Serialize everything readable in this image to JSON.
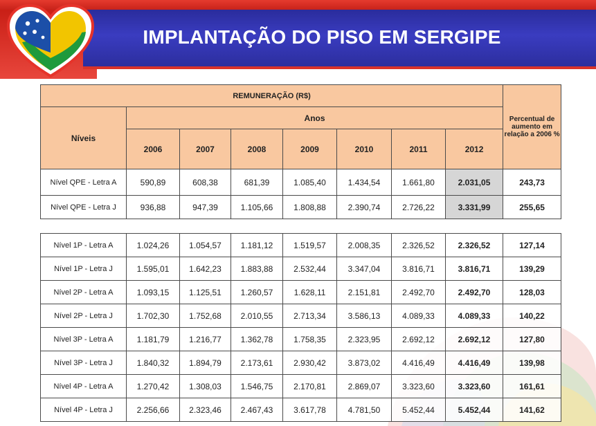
{
  "title": "IMPLANTAÇÃO DO PISO EM SERGIPE",
  "colors": {
    "header_blue": "#2a2c9c",
    "header_red": "#d9332a",
    "table_header": "#f9c8a0",
    "highlight_gray": "#d6d6d6"
  },
  "table": {
    "group_header": "REMUNERAÇÃO (R$)",
    "levels_header": "Níveis",
    "years_header": "Anos",
    "percent_header": "Percentual de aumento em relação a 2006 %",
    "years": [
      "2006",
      "2007",
      "2008",
      "2009",
      "2010",
      "2011",
      "2012"
    ],
    "rows_qpe": [
      {
        "label": "Nível QPE - Letra A",
        "values": [
          "590,89",
          "608,38",
          "681,39",
          "1.085,40",
          "1.434,54",
          "1.661,80",
          "2.031,05"
        ],
        "percent": "243,73"
      },
      {
        "label": "Nível QPE - Letra J",
        "values": [
          "936,88",
          "947,39",
          "1.105,66",
          "1.808,88",
          "2.390,74",
          "2.726,22",
          "3.331,99"
        ],
        "percent": "255,65"
      }
    ],
    "rows_p": [
      {
        "label": "Nível 1P - Letra A",
        "values": [
          "1.024,26",
          "1.054,57",
          "1.181,12",
          "1.519,57",
          "2.008,35",
          "2.326,52",
          "2.326,52"
        ],
        "percent": "127,14"
      },
      {
        "label": "Nível 1P - Letra J",
        "values": [
          "1.595,01",
          "1.642,23",
          "1.883,88",
          "2.532,44",
          "3.347,04",
          "3.816,71",
          "3.816,71"
        ],
        "percent": "139,29"
      },
      {
        "label": "Nível 2P - Letra A",
        "values": [
          "1.093,15",
          "1.125,51",
          "1.260,57",
          "1.628,11",
          "2.151,81",
          "2.492,70",
          "2.492,70"
        ],
        "percent": "128,03"
      },
      {
        "label": "Nível 2P - Letra J",
        "values": [
          "1.702,30",
          "1.752,68",
          "2.010,55",
          "2.713,34",
          "3.586,13",
          "4.089,33",
          "4.089,33"
        ],
        "percent": "140,22"
      },
      {
        "label": "Nível 3P - Letra A",
        "values": [
          "1.181,79",
          "1.216,77",
          "1.362,78",
          "1.758,35",
          "2.323,95",
          "2.692,12",
          "2.692,12"
        ],
        "percent": "127,80"
      },
      {
        "label": "Nível 3P - Letra J",
        "values": [
          "1.840,32",
          "1.894,79",
          "2.173,61",
          "2.930,42",
          "3.873,02",
          "4.416,49",
          "4.416,49"
        ],
        "percent": "139,98"
      },
      {
        "label": "Nível 4P - Letra A",
        "values": [
          "1.270,42",
          "1.308,03",
          "1.546,75",
          "2.170,81",
          "2.869,07",
          "3.323,60",
          "3.323,60"
        ],
        "percent": "161,61"
      },
      {
        "label": "Nível 4P - Letra J",
        "values": [
          "2.256,66",
          "2.323,46",
          "2.467,43",
          "3.617,78",
          "4.781,50",
          "5.452,44",
          "5.452,44"
        ],
        "percent": "141,62"
      }
    ]
  }
}
